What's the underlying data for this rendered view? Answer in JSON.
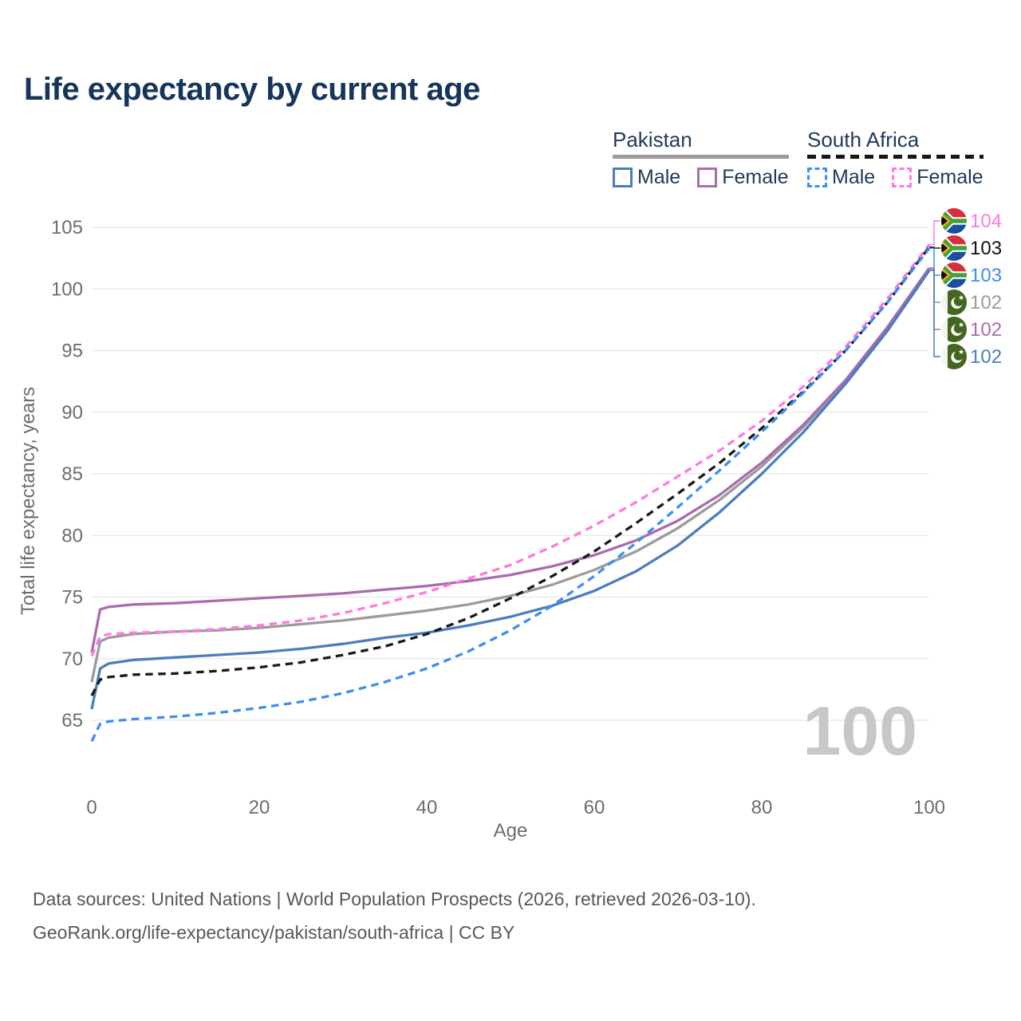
{
  "title": "Life expectancy by current age",
  "legend": {
    "groups": [
      {
        "country": "Pakistan",
        "line_style": "solid",
        "underline_color": "#9b9b9b",
        "items": [
          {
            "label": "Male",
            "color": "#4a7ebc",
            "style": "solid"
          },
          {
            "label": "Female",
            "color": "#aa6cac",
            "style": "solid"
          }
        ]
      },
      {
        "country": "South Africa",
        "line_style": "dashed",
        "underline_color": "#161616",
        "items": [
          {
            "label": "Male",
            "color": "#3d8ef0",
            "style": "dashed"
          },
          {
            "label": "Female",
            "color": "#ff79e1",
            "style": "dashed"
          }
        ]
      }
    ]
  },
  "chart_data": {
    "type": "line",
    "title": "Life expectancy by current age",
    "xlabel": "Age",
    "ylabel": "Total life expectancy, years",
    "xlim": [
      0,
      100
    ],
    "ylim": [
      62,
      106
    ],
    "xticks": [
      0,
      20,
      40,
      60,
      80,
      100
    ],
    "yticks": [
      65,
      70,
      75,
      80,
      85,
      90,
      95,
      100,
      105
    ],
    "grid": "horizontal-only",
    "legend_position": "top-right",
    "current_age_watermark": "100",
    "x": [
      0,
      1,
      2,
      5,
      10,
      15,
      20,
      25,
      30,
      35,
      40,
      45,
      50,
      55,
      60,
      65,
      70,
      75,
      80,
      85,
      90,
      95,
      100
    ],
    "series": [
      {
        "name": "South Africa Female",
        "country": "south-africa",
        "sex": "female",
        "style": "dashed",
        "color": "#ff79e1",
        "end_label": {
          "text": "104",
          "row": 0,
          "flag": "south-africa"
        },
        "values": [
          70.2,
          71.8,
          72.0,
          72.1,
          72.2,
          72.4,
          72.7,
          73.1,
          73.7,
          74.5,
          75.4,
          76.5,
          77.6,
          79.1,
          80.8,
          82.7,
          84.8,
          86.9,
          89.3,
          92.1,
          95.3,
          99.2,
          103.6
        ]
      },
      {
        "name": "South Africa Both sexes",
        "country": "south-africa",
        "sex": "all",
        "style": "dashed",
        "color": "#1a1a1a",
        "end_label": {
          "text": "103",
          "row": 1,
          "flag": "south-africa"
        },
        "values": [
          67.0,
          68.3,
          68.5,
          68.7,
          68.8,
          69.0,
          69.3,
          69.7,
          70.3,
          71.0,
          72.0,
          73.3,
          74.9,
          76.7,
          78.7,
          81.0,
          83.4,
          85.9,
          88.7,
          91.7,
          95.0,
          98.9,
          103.4
        ]
      },
      {
        "name": "South Africa Male",
        "country": "south-africa",
        "sex": "male",
        "style": "dashed",
        "color": "#3d8ef0",
        "end_label": {
          "text": "103",
          "row": 2,
          "flag": "south-africa"
        },
        "values": [
          63.3,
          64.7,
          64.9,
          65.1,
          65.3,
          65.6,
          66.0,
          66.5,
          67.2,
          68.1,
          69.2,
          70.6,
          72.3,
          74.3,
          76.7,
          79.4,
          82.3,
          85.3,
          88.4,
          91.6,
          95.0,
          98.9,
          103.3
        ]
      },
      {
        "name": "Pakistan Both sexes",
        "country": "pakistan",
        "sex": "all",
        "style": "solid",
        "color": "#9b9b9b",
        "end_label": {
          "text": "102",
          "row": 3,
          "flag": "pakistan"
        },
        "values": [
          68.1,
          71.4,
          71.7,
          72.0,
          72.2,
          72.3,
          72.5,
          72.8,
          73.1,
          73.5,
          73.9,
          74.4,
          75.1,
          76.0,
          77.2,
          78.7,
          80.6,
          82.9,
          85.6,
          88.8,
          92.5,
          96.8,
          101.6
        ]
      },
      {
        "name": "Pakistan Female",
        "country": "pakistan",
        "sex": "female",
        "style": "solid",
        "color": "#aa6cac",
        "end_label": {
          "text": "102",
          "row": 4,
          "flag": "pakistan"
        },
        "values": [
          70.5,
          74.0,
          74.2,
          74.4,
          74.5,
          74.7,
          74.9,
          75.1,
          75.3,
          75.6,
          75.9,
          76.3,
          76.8,
          77.5,
          78.4,
          79.6,
          81.2,
          83.3,
          85.9,
          89.0,
          92.6,
          96.9,
          101.7
        ]
      },
      {
        "name": "Pakistan Male",
        "country": "pakistan",
        "sex": "male",
        "style": "solid",
        "color": "#4a7ebc",
        "end_label": {
          "text": "102",
          "row": 5,
          "flag": "pakistan"
        },
        "values": [
          65.9,
          69.2,
          69.6,
          69.9,
          70.1,
          70.3,
          70.5,
          70.8,
          71.2,
          71.7,
          72.1,
          72.7,
          73.4,
          74.3,
          75.5,
          77.1,
          79.2,
          81.9,
          85.0,
          88.4,
          92.3,
          96.6,
          101.5
        ]
      }
    ]
  },
  "source": {
    "line1": "Data sources: United Nations | World Population Prospects (2026, retrieved 2026-03-10).",
    "line2": "GeoRank.org/life-expectancy/pakistan/south-africa | CC BY"
  }
}
